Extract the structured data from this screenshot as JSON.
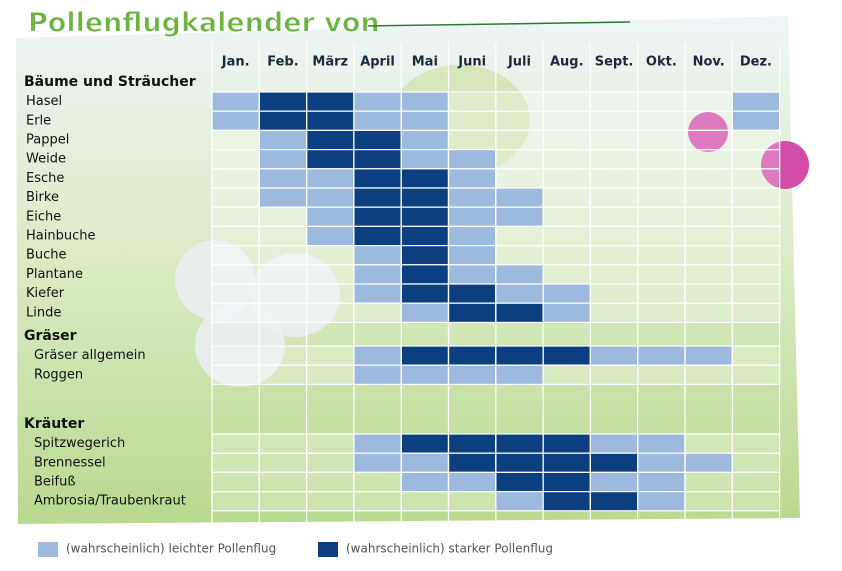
{
  "title": "Pollenflugkalender von",
  "months": [
    "Jan.",
    "Feb.",
    "März",
    "April",
    "Mai",
    "Juni",
    "Juli",
    "Aug.",
    "Sept.",
    "Okt.",
    "Nov.",
    "Dez."
  ],
  "groups": [
    {
      "name": "Bäume und Sträucher",
      "rows": [
        {
          "name": "Hasel",
          "levels": [
            1,
            2,
            2,
            1,
            1,
            0,
            0,
            0,
            0,
            0,
            0,
            1
          ]
        },
        {
          "name": "Erle",
          "levels": [
            1,
            2,
            2,
            1,
            1,
            0,
            0,
            0,
            0,
            0,
            0,
            1
          ]
        },
        {
          "name": "Pappel",
          "levels": [
            0,
            1,
            2,
            2,
            1,
            0,
            0,
            0,
            0,
            0,
            0,
            0
          ]
        },
        {
          "name": "Weide",
          "levels": [
            0,
            1,
            2,
            2,
            1,
            1,
            0,
            0,
            0,
            0,
            0,
            0
          ]
        },
        {
          "name": "Esche",
          "levels": [
            0,
            1,
            1,
            2,
            2,
            1,
            0,
            0,
            0,
            0,
            0,
            0
          ]
        },
        {
          "name": "Birke",
          "levels": [
            0,
            1,
            1,
            2,
            2,
            1,
            1,
            0,
            0,
            0,
            0,
            0
          ]
        },
        {
          "name": "Eiche",
          "levels": [
            0,
            0,
            1,
            2,
            2,
            1,
            1,
            0,
            0,
            0,
            0,
            0
          ]
        },
        {
          "name": "Hainbuche",
          "levels": [
            0,
            0,
            1,
            2,
            2,
            1,
            0,
            0,
            0,
            0,
            0,
            0
          ]
        },
        {
          "name": "Buche",
          "levels": [
            0,
            0,
            0,
            1,
            2,
            1,
            0,
            0,
            0,
            0,
            0,
            0
          ]
        },
        {
          "name": "Plantane",
          "levels": [
            0,
            0,
            0,
            1,
            2,
            1,
            1,
            0,
            0,
            0,
            0,
            0
          ]
        },
        {
          "name": "Kiefer",
          "levels": [
            0,
            0,
            0,
            1,
            2,
            2,
            1,
            1,
            0,
            0,
            0,
            0
          ]
        },
        {
          "name": "Linde",
          "levels": [
            0,
            0,
            0,
            0,
            1,
            2,
            2,
            1,
            0,
            0,
            0,
            0
          ]
        }
      ]
    },
    {
      "name": "Gräser",
      "rows": [
        {
          "name": "Gräser allgemein",
          "levels": [
            0,
            0,
            0,
            1,
            2,
            2,
            2,
            2,
            1,
            1,
            1,
            0
          ]
        },
        {
          "name": "Roggen",
          "levels": [
            0,
            0,
            0,
            1,
            1,
            1,
            1,
            0,
            0,
            0,
            0,
            0
          ]
        }
      ]
    },
    {
      "name": "Kräuter",
      "rows": [
        {
          "name": "Spitzwegerich",
          "levels": [
            0,
            0,
            0,
            1,
            2,
            2,
            2,
            2,
            1,
            1,
            0,
            0
          ]
        },
        {
          "name": "Brennessel",
          "levels": [
            0,
            0,
            0,
            1,
            1,
            2,
            2,
            2,
            2,
            1,
            1,
            0
          ]
        },
        {
          "name": "Beifuß",
          "levels": [
            0,
            0,
            0,
            0,
            1,
            1,
            2,
            2,
            1,
            1,
            0,
            0
          ]
        },
        {
          "name": "Ambrosia/Traubenkraut",
          "levels": [
            0,
            0,
            0,
            0,
            0,
            0,
            1,
            2,
            2,
            1,
            0,
            0
          ]
        }
      ]
    }
  ],
  "legend": [
    {
      "label": "(wahrscheinlich) leichter Pollenflug",
      "color": "#9db9dd"
    },
    {
      "label": "(wahrscheinlich) starker Pollenflug",
      "color": "#0c3f80"
    }
  ]
}
